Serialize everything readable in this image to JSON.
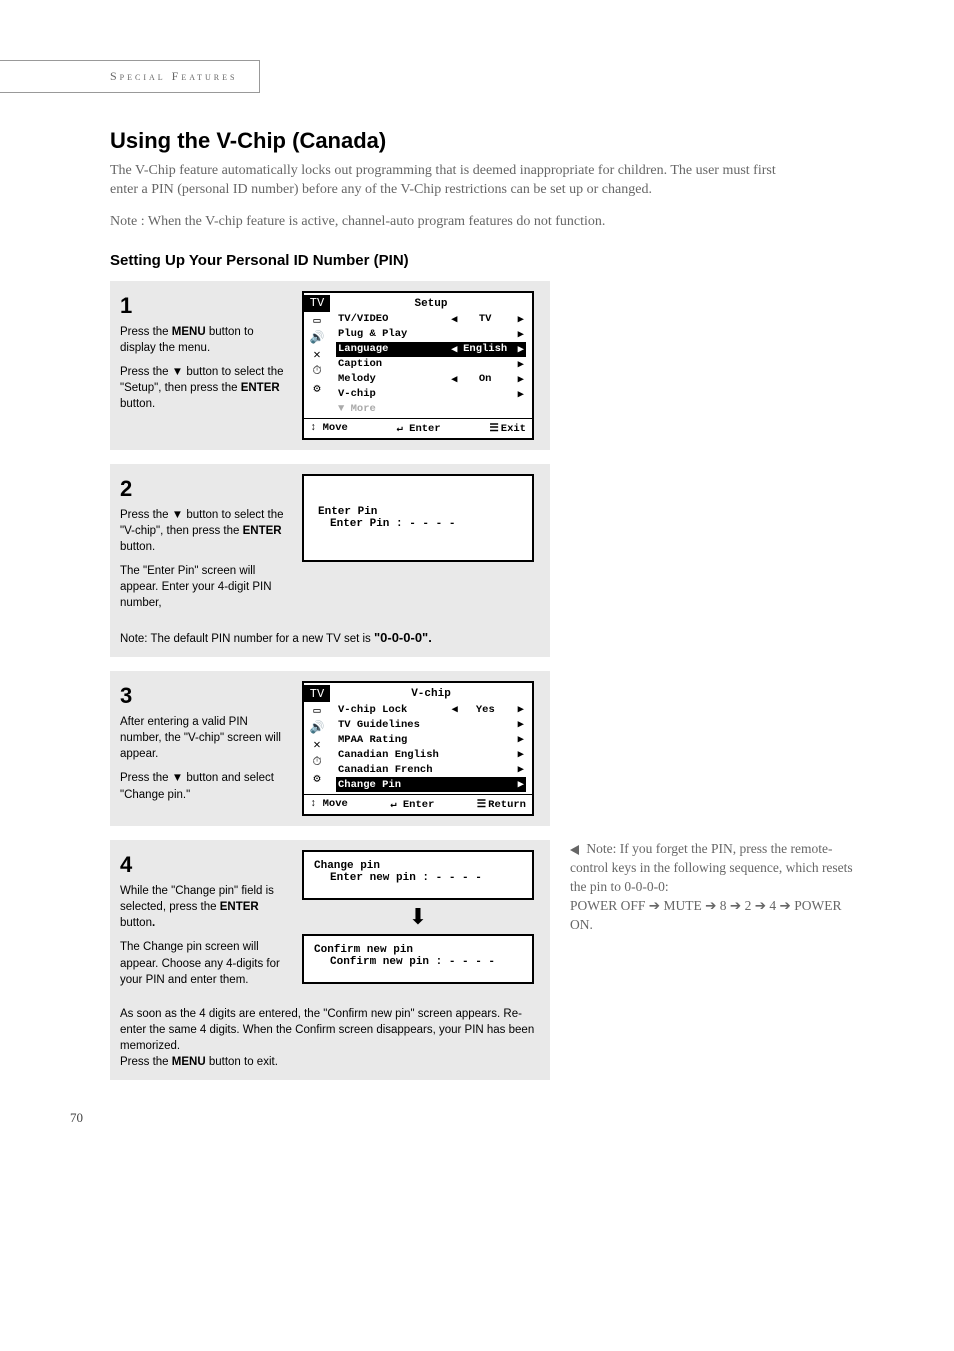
{
  "section_header": "Special Features",
  "title": "Using the V-Chip (Canada)",
  "intro": "The V-Chip feature automatically locks out programming that is deemed inappropriate for children. The user must first enter a PIN (personal ID number) before any of the V-Chip restrictions can be set up or changed.",
  "note_active": "Note : When the V-chip feature is active, channel-auto program features do not function.",
  "subheading": "Setting Up Your Personal ID Number (PIN)",
  "steps": {
    "s1": {
      "num": "1",
      "p1_a": "Press the ",
      "p1_b": "MENU",
      "p1_c": " button to display the menu.",
      "p2_a": "Press the ▼ button to select the \"Setup\", then press the ",
      "p2_b": "ENTER",
      "p2_c": " button."
    },
    "s2": {
      "num": "2",
      "p1_a": "Press the ▼ button to select  the \"V-chip\", then press the ",
      "p1_b": "ENTER",
      "p1_c": " button.",
      "p2": "The \"Enter Pin\" screen will appear. Enter your 4-digit PIN number,",
      "foot_a": "Note: The default PIN number for a new TV set is ",
      "foot_b": "\"0-0-0-0\"."
    },
    "s3": {
      "num": "3",
      "p1": "After entering a valid PIN number, the \"V-chip\" screen will appear.",
      "p2": "Press the ▼ button and select \"Change pin.\""
    },
    "s4": {
      "num": "4",
      "p1_a": "While the \"Change pin\" field is selected, press the ",
      "p1_b": "ENTER",
      "p1_c": " button",
      "p1_d": ".",
      "p2": "The Change pin screen will appear. Choose any 4-digits for your PIN and enter them.",
      "foot_a": "As soon as the 4 digits are entered, the \"Confirm new pin\" screen appears. Re-enter the same 4 digits. When the Confirm screen disappears, your PIN has been memorized.",
      "foot_b_a": "Press the ",
      "foot_b_b": "MENU",
      "foot_b_c": " button to exit."
    }
  },
  "osd1": {
    "title": "Setup",
    "tv_label": "TV",
    "items": [
      {
        "label": "TV/VIDEO",
        "left": "◀",
        "val": "TV",
        "right": "▶"
      },
      {
        "label": "Plug & Play",
        "left": "",
        "val": "",
        "right": "▶"
      },
      {
        "label": "Language",
        "left": "◀",
        "val": "English",
        "right": "▶",
        "hl": true
      },
      {
        "label": "Caption",
        "left": "",
        "val": "",
        "right": "▶"
      },
      {
        "label": "Melody",
        "left": "◀",
        "val": "On",
        "right": "▶"
      },
      {
        "label": "V-chip",
        "left": "",
        "val": "",
        "right": "▶"
      },
      {
        "label": "▼ More",
        "left": "",
        "val": "",
        "right": "",
        "dim": true
      }
    ],
    "foot": {
      "move": "Move",
      "enter": "Enter",
      "exit": "Exit"
    }
  },
  "osd2": {
    "title": "Enter Pin",
    "line": "Enter Pin   : - - - -"
  },
  "osd3": {
    "title": "V-chip",
    "tv_label": "TV",
    "items": [
      {
        "label": "V-chip Lock",
        "left": "◀",
        "val": "Yes",
        "right": "▶"
      },
      {
        "label": "TV Guidelines",
        "left": "",
        "val": "",
        "right": "▶"
      },
      {
        "label": "MPAA Rating",
        "left": "",
        "val": "",
        "right": "▶"
      },
      {
        "label": "Canadian English",
        "left": "",
        "val": "",
        "right": "▶"
      },
      {
        "label": "Canadian French",
        "left": "",
        "val": "",
        "right": "▶"
      },
      {
        "label": "Change Pin",
        "left": "",
        "val": "",
        "right": "▶",
        "hl": true
      }
    ],
    "foot": {
      "move": "Move",
      "enter": "Enter",
      "exit": "Return"
    }
  },
  "osd4a": {
    "title": "Change pin",
    "line": "Enter new pin : - - - -"
  },
  "osd4b": {
    "title": "Confirm new pin",
    "line": "Confirm new pin : - - - -"
  },
  "side_note": {
    "l1": " Note: If you forget the PIN, press the remote-control keys in the following sequence, which resets the pin to 0-0-0-0:",
    "l2_parts": [
      "POWER OFF ",
      " MUTE ",
      " 8 ",
      " 2 ",
      " 4 ",
      " POWER ON."
    ]
  },
  "page_number": "70",
  "icons": [
    "▭",
    "🔊",
    "✕",
    "⏱",
    "⚙"
  ]
}
